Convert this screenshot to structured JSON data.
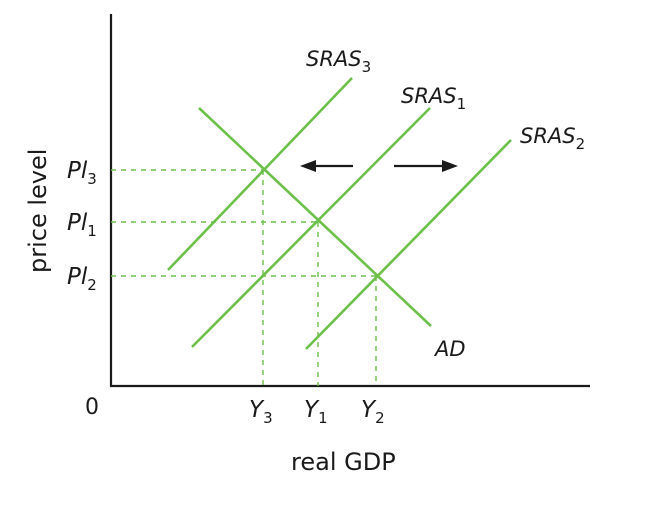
{
  "diagram": {
    "x_axis_label": "real GDP",
    "y_axis_label": "price level",
    "origin_label": "0",
    "curves": {
      "sras3": {
        "base": "SRAS",
        "sub": "3"
      },
      "sras1": {
        "base": "SRAS",
        "sub": "1"
      },
      "sras2": {
        "base": "SRAS",
        "sub": "2"
      },
      "ad": {
        "base": "AD"
      }
    },
    "price_levels": [
      {
        "base": "Pl",
        "sub": "3"
      },
      {
        "base": "Pl",
        "sub": "1"
      },
      {
        "base": "Pl",
        "sub": "2"
      }
    ],
    "output_levels": [
      {
        "base": "Y",
        "sub": "3"
      },
      {
        "base": "Y",
        "sub": "1"
      },
      {
        "base": "Y",
        "sub": "2"
      }
    ],
    "colors": {
      "curve": "#6cc04a",
      "axis": "#1a1a1a"
    }
  }
}
